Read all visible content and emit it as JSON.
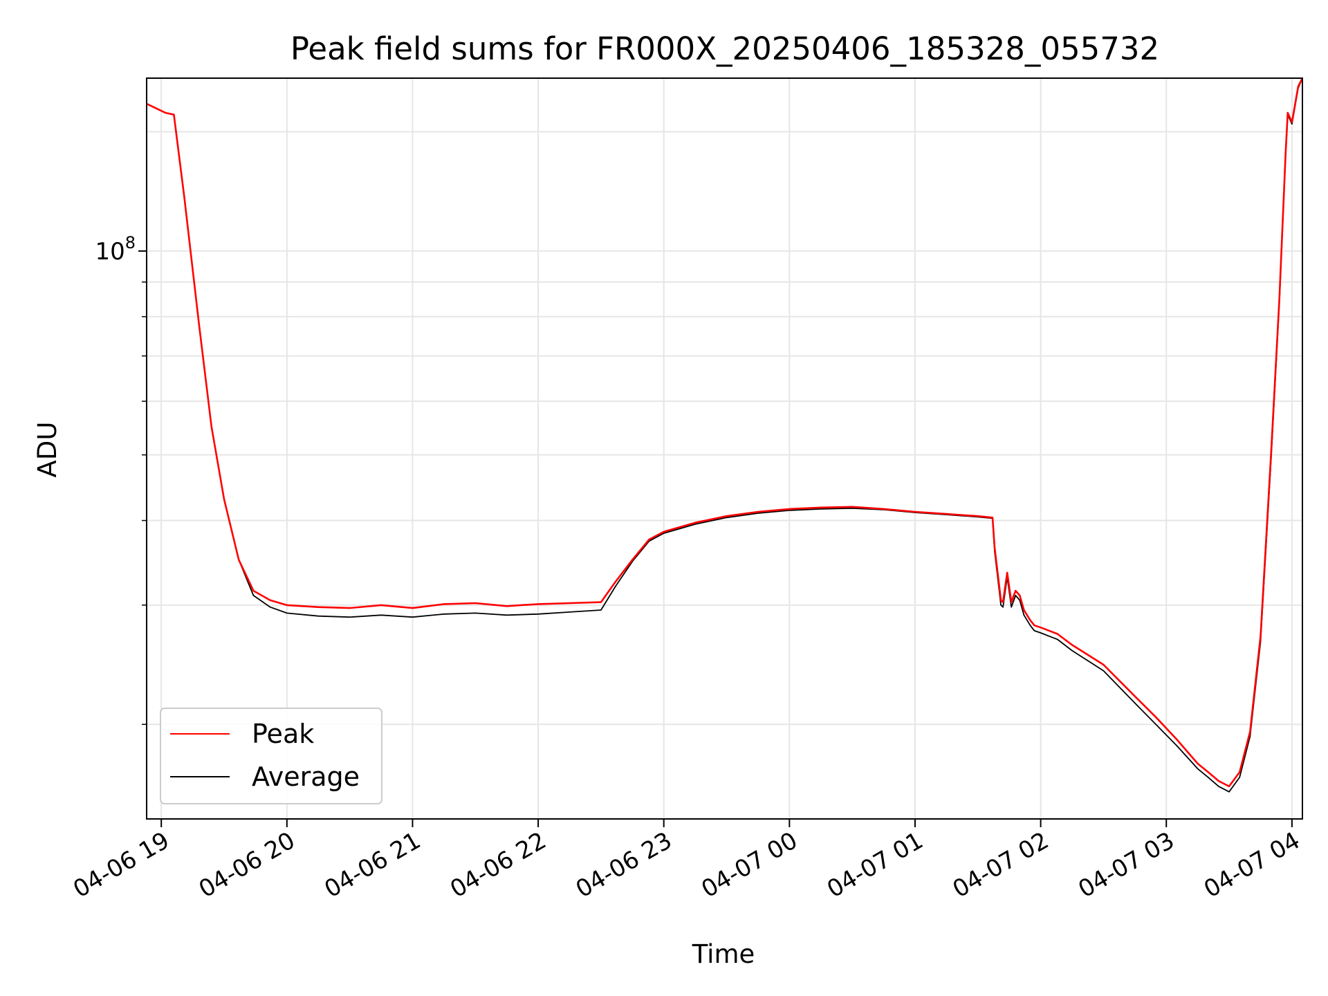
{
  "chart_data": {
    "type": "line",
    "title": "Peak field sums for FR000X_20250406_185328_055732",
    "xlabel": "Time",
    "ylabel": "ADU",
    "y_scale": "log",
    "ylim": [
      14500000,
      180000000
    ],
    "xlim": [
      "2025-04-06 18:53",
      "2025-04-07 04:05"
    ],
    "grid": true,
    "legend_position": "lower-left",
    "x_tick_labels": [
      "04-06 19",
      "04-06 20",
      "04-06 21",
      "04-06 22",
      "04-06 23",
      "04-07 00",
      "04-07 01",
      "04-07 02",
      "04-07 03",
      "04-07 04"
    ],
    "y_tick_labels": [
      {
        "base": "10",
        "exponent": "8"
      }
    ],
    "series": [
      {
        "name": "Peak",
        "color": "#ff0000",
        "x": [
          "2025-04-06 18:53",
          "2025-04-06 19:02",
          "2025-04-06 19:06",
          "2025-04-06 19:11",
          "2025-04-06 19:18",
          "2025-04-06 19:24",
          "2025-04-06 19:30",
          "2025-04-06 19:37",
          "2025-04-06 19:44",
          "2025-04-06 19:52",
          "2025-04-06 20:00",
          "2025-04-06 20:15",
          "2025-04-06 20:30",
          "2025-04-06 20:45",
          "2025-04-06 21:00",
          "2025-04-06 21:15",
          "2025-04-06 21:30",
          "2025-04-06 21:45",
          "2025-04-06 22:00",
          "2025-04-06 22:15",
          "2025-04-06 22:30",
          "2025-04-06 22:37",
          "2025-04-06 22:45",
          "2025-04-06 22:53",
          "2025-04-06 23:00",
          "2025-04-06 23:15",
          "2025-04-06 23:30",
          "2025-04-06 23:45",
          "2025-04-07 00:00",
          "2025-04-07 00:15",
          "2025-04-07 00:30",
          "2025-04-07 00:45",
          "2025-04-07 01:00",
          "2025-04-07 01:15",
          "2025-04-07 01:30",
          "2025-04-07 01:37",
          "2025-04-07 01:38",
          "2025-04-07 01:41",
          "2025-04-07 01:42",
          "2025-04-07 01:44",
          "2025-04-07 01:46",
          "2025-04-07 01:48",
          "2025-04-07 01:50",
          "2025-04-07 01:52",
          "2025-04-07 01:55",
          "2025-04-07 01:57",
          "2025-04-07 02:00",
          "2025-04-07 02:08",
          "2025-04-07 02:15",
          "2025-04-07 02:30",
          "2025-04-07 02:45",
          "2025-04-07 02:55",
          "2025-04-07 03:05",
          "2025-04-07 03:15",
          "2025-04-07 03:20",
          "2025-04-07 03:25",
          "2025-04-07 03:30",
          "2025-04-07 03:35",
          "2025-04-07 03:40",
          "2025-04-07 03:45",
          "2025-04-07 03:50",
          "2025-04-07 03:54",
          "2025-04-07 03:57",
          "2025-04-07 03:58",
          "2025-04-07 04:00",
          "2025-04-07 04:03",
          "2025-04-07 04:05"
        ],
        "y": [
          165000000,
          160000000,
          159000000,
          120000000,
          78000000,
          55000000,
          43000000,
          35000000,
          31500000,
          30500000,
          30000000,
          29800000,
          29700000,
          30000000,
          29700000,
          30100000,
          30200000,
          29900000,
          30100000,
          30200000,
          30300000,
          32500000,
          35000000,
          37500000,
          38500000,
          39700000,
          40600000,
          41200000,
          41600000,
          41800000,
          41900000,
          41600000,
          41200000,
          40900000,
          40600000,
          40400000,
          36500000,
          30500000,
          30300000,
          33500000,
          30300000,
          31500000,
          31000000,
          29500000,
          28500000,
          28000000,
          27800000,
          27200000,
          26200000,
          24500000,
          22000000,
          20500000,
          19000000,
          17500000,
          17000000,
          16500000,
          16200000,
          17000000,
          19500000,
          27000000,
          50000000,
          85000000,
          140000000,
          160000000,
          155000000,
          175000000,
          180000000
        ]
      },
      {
        "name": "Average",
        "color": "#000000",
        "x": [
          "2025-04-06 18:53",
          "2025-04-06 19:02",
          "2025-04-06 19:06",
          "2025-04-06 19:11",
          "2025-04-06 19:18",
          "2025-04-06 19:24",
          "2025-04-06 19:30",
          "2025-04-06 19:37",
          "2025-04-06 19:44",
          "2025-04-06 19:52",
          "2025-04-06 20:00",
          "2025-04-06 20:15",
          "2025-04-06 20:30",
          "2025-04-06 20:45",
          "2025-04-06 21:00",
          "2025-04-06 21:15",
          "2025-04-06 21:30",
          "2025-04-06 21:45",
          "2025-04-06 22:00",
          "2025-04-06 22:15",
          "2025-04-06 22:30",
          "2025-04-06 22:37",
          "2025-04-06 22:45",
          "2025-04-06 22:53",
          "2025-04-06 23:00",
          "2025-04-06 23:15",
          "2025-04-06 23:30",
          "2025-04-06 23:45",
          "2025-04-07 00:00",
          "2025-04-07 00:15",
          "2025-04-07 00:30",
          "2025-04-07 00:45",
          "2025-04-07 01:00",
          "2025-04-07 01:15",
          "2025-04-07 01:30",
          "2025-04-07 01:37",
          "2025-04-07 01:38",
          "2025-04-07 01:41",
          "2025-04-07 01:42",
          "2025-04-07 01:44",
          "2025-04-07 01:46",
          "2025-04-07 01:48",
          "2025-04-07 01:50",
          "2025-04-07 01:52",
          "2025-04-07 01:55",
          "2025-04-07 01:57",
          "2025-04-07 02:00",
          "2025-04-07 02:08",
          "2025-04-07 02:15",
          "2025-04-07 02:30",
          "2025-04-07 02:45",
          "2025-04-07 02:55",
          "2025-04-07 03:05",
          "2025-04-07 03:15",
          "2025-04-07 03:20",
          "2025-04-07 03:25",
          "2025-04-07 03:30",
          "2025-04-07 03:35",
          "2025-04-07 03:40",
          "2025-04-07 03:45",
          "2025-04-07 03:50",
          "2025-04-07 03:54",
          "2025-04-07 03:57",
          "2025-04-07 03:58",
          "2025-04-07 04:00",
          "2025-04-07 04:03",
          "2025-04-07 04:05"
        ],
        "y": [
          165000000,
          160000000,
          159000000,
          120000000,
          78000000,
          55000000,
          43000000,
          35000000,
          31000000,
          29800000,
          29200000,
          28900000,
          28800000,
          29000000,
          28800000,
          29100000,
          29200000,
          29000000,
          29100000,
          29300000,
          29500000,
          32000000,
          34800000,
          37300000,
          38300000,
          39500000,
          40400000,
          41000000,
          41400000,
          41600000,
          41700000,
          41500000,
          41100000,
          40800000,
          40500000,
          40300000,
          36000000,
          30000000,
          29800000,
          33000000,
          29800000,
          31000000,
          30500000,
          29000000,
          28000000,
          27500000,
          27300000,
          26700000,
          25700000,
          24000000,
          21500000,
          20000000,
          18600000,
          17200000,
          16700000,
          16200000,
          15900000,
          16700000,
          19200000,
          26500000,
          49000000,
          84000000,
          139000000,
          159000000,
          154000000,
          174000000,
          180000000
        ]
      }
    ]
  }
}
